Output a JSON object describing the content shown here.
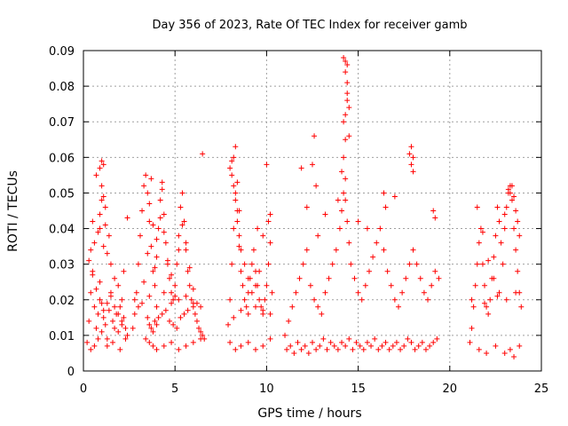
{
  "chart_data": {
    "type": "scatter",
    "title": "Day 356 of 2023, Rate Of TEC Index for receiver gamb",
    "xlabel": "GPS time / hours",
    "ylabel": "ROTI / TECUs",
    "xlim": [
      0,
      25
    ],
    "ylim": [
      0,
      0.09
    ],
    "x_ticks": [
      0,
      5,
      10,
      15,
      20,
      25
    ],
    "x_tick_labels": [
      "0",
      "5",
      "10",
      "15",
      "20",
      "25"
    ],
    "y_ticks": [
      0,
      0.01,
      0.02,
      0.03,
      0.04,
      0.05,
      0.06,
      0.07,
      0.08,
      0.09
    ],
    "y_tick_labels": [
      "0",
      "0.01",
      "0.02",
      "0.03",
      "0.04",
      "0.05",
      "0.06",
      "0.07",
      "0.08",
      "0.09"
    ],
    "grid": true,
    "marker": "+",
    "marker_color": "#ff0000",
    "series": [
      {
        "x": [
          0.2,
          0.3,
          0.4,
          0.4,
          0.5,
          0.6,
          0.7,
          0.8,
          0.9,
          1.0,
          1.0,
          1.1,
          1.2,
          1.3,
          1.4,
          1.5,
          1.6,
          1.7,
          1.8,
          1.9,
          2.0,
          2.1,
          2.2,
          2.4,
          0.5,
          0.6,
          0.8,
          0.9,
          1.0,
          1.1,
          1.2,
          1.4,
          1.5,
          1.7,
          1.9,
          2.1,
          2.2,
          0.7,
          0.9,
          1.0,
          1.1,
          1.2,
          1.3,
          1.0,
          0.9,
          1.1,
          0.4,
          0.6,
          0.8,
          1.3,
          1.6,
          2.0,
          2.3,
          2.4,
          0.3,
          0.5,
          0.7,
          0.9,
          1.1,
          1.3,
          1.5,
          1.7,
          1.9,
          2.1,
          2.3,
          2.7,
          2.8,
          2.9,
          3.0,
          3.1,
          3.2,
          3.3,
          3.4,
          3.5,
          3.6,
          3.7,
          3.8,
          3.9,
          4.0,
          4.1,
          4.2,
          4.3,
          4.4,
          4.5,
          4.6,
          4.7,
          4.8,
          4.9,
          5.0,
          5.1,
          5.2,
          5.3,
          5.4,
          5.5,
          5.6,
          5.7,
          5.8,
          5.9,
          6.0,
          6.1,
          6.2,
          6.3,
          6.4,
          6.5,
          6.6,
          3.0,
          3.3,
          3.5,
          3.6,
          3.7,
          3.8,
          3.9,
          4.0,
          4.2,
          4.3,
          4.4,
          4.6,
          4.8,
          5.0,
          5.2,
          5.4,
          5.6,
          5.8,
          6.0,
          6.2,
          3.5,
          3.6,
          3.7,
          3.8,
          3.9,
          4.0,
          4.1,
          4.3,
          4.5,
          4.7,
          4.9,
          5.1,
          5.3,
          5.5,
          5.7,
          6.5,
          3.4,
          3.6,
          3.8,
          4.0,
          4.4,
          4.8,
          5.2,
          5.6,
          6.0,
          6.4,
          2.8,
          3.2,
          3.6,
          4.0,
          4.4,
          4.8,
          5.2,
          5.6,
          6.0,
          6.4,
          7.9,
          8.0,
          8.1,
          8.2,
          8.3,
          8.4,
          8.5,
          8.6,
          8.7,
          8.8,
          8.9,
          9.0,
          9.1,
          9.2,
          9.3,
          9.4,
          9.5,
          9.6,
          9.7,
          9.8,
          9.9,
          10.0,
          10.1,
          10.2,
          10.3,
          8.0,
          8.1,
          8.2,
          8.3,
          8.4,
          8.5,
          8.6,
          8.8,
          9.0,
          9.2,
          9.4,
          9.6,
          9.8,
          10.0,
          10.2,
          8.1,
          8.2,
          8.3,
          8.4,
          8.5,
          9.5,
          10.1,
          8.0,
          8.3,
          8.6,
          9.0,
          9.4,
          9.8,
          10.2,
          8.2,
          8.6,
          9.0,
          9.4,
          9.8,
          10.2,
          11.0,
          11.2,
          11.4,
          11.6,
          11.8,
          12.0,
          12.2,
          12.4,
          12.6,
          12.8,
          13.0,
          13.2,
          13.4,
          13.6,
          13.8,
          14.0,
          14.1,
          14.2,
          14.3,
          14.4,
          14.5,
          14.6,
          14.8,
          15.0,
          15.2,
          15.4,
          15.6,
          15.8,
          16.0,
          16.2,
          16.4,
          16.6,
          16.8,
          17.0,
          17.2,
          17.4,
          17.6,
          17.8,
          18.0,
          18.2,
          18.4,
          18.6,
          18.8,
          19.0,
          19.2,
          19.4,
          11.1,
          11.3,
          11.5,
          11.7,
          11.9,
          12.1,
          12.3,
          12.5,
          12.7,
          12.9,
          13.1,
          13.3,
          13.5,
          13.7,
          13.9,
          14.1,
          14.3,
          14.5,
          14.7,
          14.9,
          15.1,
          15.3,
          15.5,
          15.7,
          15.9,
          16.1,
          16.3,
          16.5,
          16.7,
          16.9,
          17.1,
          17.3,
          17.5,
          17.7,
          17.9,
          18.1,
          18.3,
          18.5,
          18.7,
          18.9,
          19.1,
          19.3,
          11.9,
          12.5,
          12.6,
          12.7,
          14.2,
          14.3,
          14.3,
          14.4,
          14.4,
          14.3,
          14.4,
          14.2,
          14.3,
          14.4,
          14.2,
          14.1,
          13.9,
          14.5,
          14.5,
          14.3,
          16.4,
          16.5,
          17.0,
          17.8,
          17.9,
          18.0,
          18.0,
          17.9,
          19.1,
          19.2,
          15.0,
          15.5,
          13.2,
          12.8,
          12.2,
          21.1,
          21.2,
          21.3,
          21.4,
          21.5,
          21.6,
          21.7,
          21.8,
          21.9,
          22.0,
          22.1,
          22.2,
          22.3,
          22.4,
          22.5,
          22.6,
          22.7,
          22.8,
          22.9,
          23.0,
          23.1,
          23.2,
          23.3,
          23.4,
          23.5,
          23.6,
          23.7,
          23.8,
          23.9,
          21.5,
          21.8,
          22.1,
          22.4,
          22.7,
          23.0,
          23.2,
          23.3,
          23.4,
          23.5,
          23.6,
          23.7,
          23.8,
          21.6,
          22.0,
          22.5,
          23.0,
          23.3,
          23.5,
          23.8,
          21.2,
          21.9,
          22.6,
          23.1,
          23.6
        ],
        "y": [
          0.008,
          0.014,
          0.022,
          0.034,
          0.028,
          0.018,
          0.012,
          0.016,
          0.025,
          0.011,
          0.019,
          0.015,
          0.013,
          0.009,
          0.017,
          0.021,
          0.014,
          0.012,
          0.016,
          0.011,
          0.018,
          0.013,
          0.015,
          0.01,
          0.042,
          0.036,
          0.039,
          0.044,
          0.052,
          0.058,
          0.046,
          0.038,
          0.03,
          0.026,
          0.024,
          0.02,
          0.028,
          0.055,
          0.057,
          0.059,
          0.049,
          0.041,
          0.033,
          0.048,
          0.04,
          0.035,
          0.006,
          0.007,
          0.009,
          0.007,
          0.008,
          0.006,
          0.009,
          0.043,
          0.031,
          0.027,
          0.023,
          0.02,
          0.017,
          0.019,
          0.022,
          0.018,
          0.016,
          0.014,
          0.012,
          0.012,
          0.016,
          0.022,
          0.03,
          0.038,
          0.045,
          0.052,
          0.055,
          0.05,
          0.042,
          0.035,
          0.028,
          0.024,
          0.032,
          0.04,
          0.048,
          0.053,
          0.044,
          0.036,
          0.03,
          0.026,
          0.022,
          0.02,
          0.024,
          0.03,
          0.038,
          0.046,
          0.05,
          0.042,
          0.034,
          0.028,
          0.024,
          0.02,
          0.018,
          0.016,
          0.014,
          0.012,
          0.011,
          0.01,
          0.009,
          0.018,
          0.025,
          0.033,
          0.047,
          0.054,
          0.041,
          0.029,
          0.037,
          0.043,
          0.051,
          0.039,
          0.031,
          0.027,
          0.021,
          0.034,
          0.041,
          0.036,
          0.029,
          0.023,
          0.019,
          0.015,
          0.013,
          0.012,
          0.011,
          0.014,
          0.013,
          0.015,
          0.016,
          0.017,
          0.014,
          0.013,
          0.012,
          0.015,
          0.016,
          0.017,
          0.061,
          0.009,
          0.008,
          0.007,
          0.006,
          0.007,
          0.008,
          0.006,
          0.007,
          0.008,
          0.009,
          0.02,
          0.019,
          0.021,
          0.018,
          0.022,
          0.019,
          0.02,
          0.021,
          0.019,
          0.018,
          0.013,
          0.02,
          0.03,
          0.04,
          0.05,
          0.045,
          0.035,
          0.028,
          0.024,
          0.02,
          0.018,
          0.022,
          0.026,
          0.03,
          0.034,
          0.028,
          0.024,
          0.02,
          0.018,
          0.016,
          0.02,
          0.024,
          0.03,
          0.036,
          0.022,
          0.057,
          0.059,
          0.052,
          0.048,
          0.042,
          0.038,
          0.034,
          0.03,
          0.026,
          0.022,
          0.024,
          0.028,
          0.038,
          0.058,
          0.044,
          0.055,
          0.06,
          0.063,
          0.053,
          0.045,
          0.04,
          0.042,
          0.008,
          0.006,
          0.007,
          0.008,
          0.006,
          0.007,
          0.009,
          0.015,
          0.017,
          0.016,
          0.018,
          0.017,
          0.016,
          0.01,
          0.014,
          0.018,
          0.022,
          0.026,
          0.03,
          0.034,
          0.024,
          0.02,
          0.018,
          0.016,
          0.022,
          0.026,
          0.03,
          0.034,
          0.04,
          0.045,
          0.05,
          0.048,
          0.042,
          0.036,
          0.03,
          0.026,
          0.022,
          0.02,
          0.024,
          0.028,
          0.032,
          0.036,
          0.04,
          0.034,
          0.028,
          0.024,
          0.02,
          0.018,
          0.022,
          0.026,
          0.03,
          0.034,
          0.03,
          0.026,
          0.022,
          0.02,
          0.024,
          0.028,
          0.026,
          0.006,
          0.007,
          0.005,
          0.008,
          0.006,
          0.007,
          0.005,
          0.008,
          0.006,
          0.007,
          0.009,
          0.006,
          0.008,
          0.007,
          0.006,
          0.008,
          0.007,
          0.009,
          0.006,
          0.008,
          0.007,
          0.006,
          0.008,
          0.007,
          0.009,
          0.006,
          0.007,
          0.008,
          0.006,
          0.007,
          0.008,
          0.006,
          0.007,
          0.009,
          0.008,
          0.006,
          0.007,
          0.008,
          0.006,
          0.007,
          0.008,
          0.009,
          0.057,
          0.058,
          0.066,
          0.052,
          0.06,
          0.065,
          0.072,
          0.076,
          0.081,
          0.084,
          0.086,
          0.088,
          0.087,
          0.078,
          0.07,
          0.056,
          0.048,
          0.066,
          0.074,
          0.054,
          0.05,
          0.046,
          0.049,
          0.061,
          0.063,
          0.06,
          0.056,
          0.058,
          0.045,
          0.043,
          0.042,
          0.04,
          0.044,
          0.038,
          0.046,
          0.008,
          0.012,
          0.018,
          0.024,
          0.03,
          0.036,
          0.04,
          0.03,
          0.024,
          0.018,
          0.016,
          0.02,
          0.026,
          0.032,
          0.038,
          0.046,
          0.042,
          0.036,
          0.03,
          0.04,
          0.046,
          0.05,
          0.052,
          0.048,
          0.04,
          0.034,
          0.028,
          0.022,
          0.018,
          0.046,
          0.039,
          0.031,
          0.026,
          0.022,
          0.044,
          0.051,
          0.05,
          0.052,
          0.049,
          0.045,
          0.042,
          0.038,
          0.006,
          0.005,
          0.007,
          0.005,
          0.006,
          0.004,
          0.007,
          0.02,
          0.019,
          0.021,
          0.02,
          0.022
        ]
      }
    ]
  }
}
